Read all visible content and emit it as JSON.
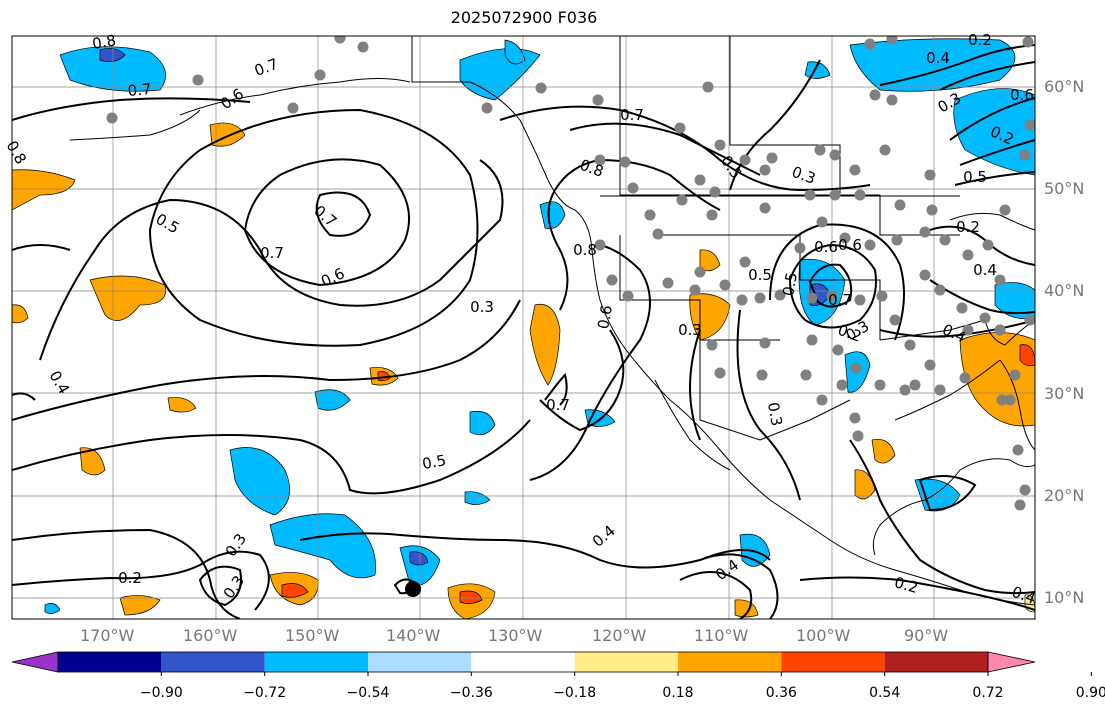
{
  "title": "2025072900 F036",
  "lon_labels": [
    "170°W",
    "160°W",
    "150°W",
    "140°W",
    "130°W",
    "120°W",
    "110°W",
    "100°W",
    "90°W"
  ],
  "lat_labels": [
    "60°N",
    "50°N",
    "40°N",
    "30°N",
    "20°N",
    "10°N"
  ],
  "colorbar": {
    "colors": [
      "#9933cc",
      "#000090",
      "#3355cc",
      "#00bbff",
      "#aaddff",
      "#ffffff",
      "#ffee88",
      "#ffa500",
      "#ff4400",
      "#b02020",
      "#ff88aa"
    ],
    "tick_labels": [
      "−0.90",
      "−0.72",
      "−0.54",
      "−0.36",
      "−0.18",
      "0.18",
      "0.36",
      "0.54",
      "0.72",
      "0.90"
    ]
  },
  "contour_labels": [
    "0.8",
    "0.7",
    "0.7",
    "0.6",
    "0.8",
    "0.5",
    "0.7",
    "0.7",
    "0.6",
    "0.3",
    "0.4",
    "0.5",
    "0.3",
    "0.2",
    "0.3",
    "0.4",
    "0.4",
    "0.7",
    "0.8",
    "0.8",
    "0.6",
    "0.7",
    "0.5",
    "0.3",
    "0.3",
    "0.2",
    "0.4",
    "0.5",
    "0.6",
    "0.5",
    "0.2",
    "0.4",
    "0.6",
    "0.2",
    "0.4",
    "0.3",
    "0.2",
    "0.2",
    "0.3",
    "0.6",
    "0.7",
    "0.4",
    "0.5",
    "0.3"
  ]
}
